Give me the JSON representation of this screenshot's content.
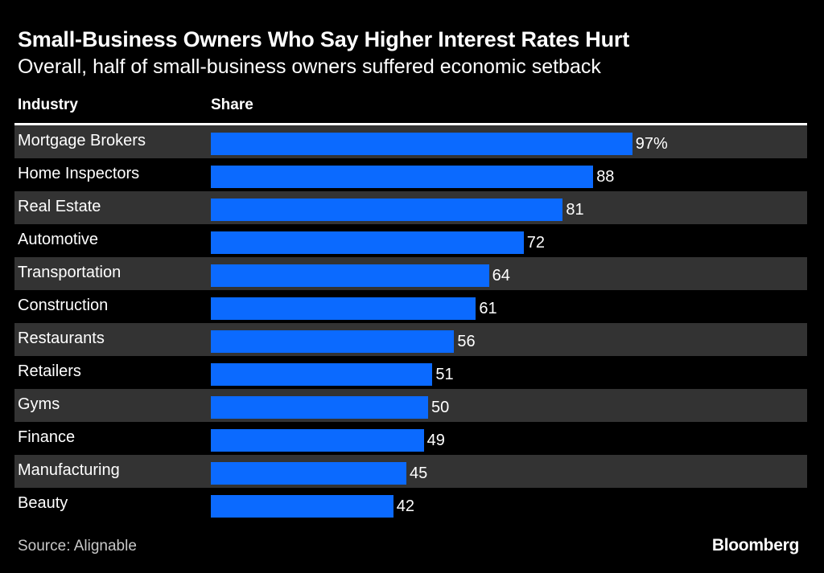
{
  "colors": {
    "background": "#000000",
    "bar": "#0B6AFF",
    "shade": "#333333",
    "text": "#ffffff"
  },
  "chart_data": {
    "type": "bar",
    "orientation": "horizontal",
    "title": "Small-Business Owners Who Say Higher Interest Rates Hurt",
    "subtitle": "Overall, half of small-business owners suffered economic setback",
    "column_headers": {
      "category": "Industry",
      "value": "Share"
    },
    "categories": [
      "Mortgage Brokers",
      "Home Inspectors",
      "Real Estate",
      "Automotive",
      "Transportation",
      "Construction",
      "Restaurants",
      "Retailers",
      "Gyms",
      "Finance",
      "Manufacturing",
      "Beauty"
    ],
    "values": [
      97,
      88,
      81,
      72,
      64,
      61,
      56,
      51,
      50,
      49,
      45,
      42
    ],
    "value_labels": [
      "97%",
      "88",
      "81",
      "72",
      "64",
      "61",
      "56",
      "51",
      "50",
      "49",
      "45",
      "42"
    ],
    "xlim": [
      0,
      100
    ],
    "unit": "%"
  },
  "footer": {
    "source": "Source: Alignable",
    "brand": "Bloomberg"
  }
}
